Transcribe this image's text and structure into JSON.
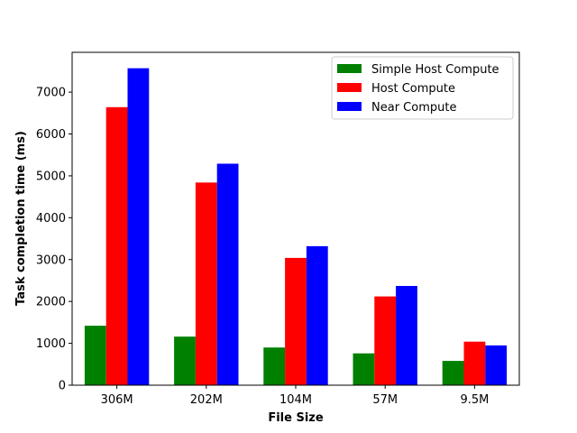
{
  "chart_data": {
    "type": "bar",
    "title": "",
    "xlabel": "File Size",
    "ylabel": "Task completion time (ms)",
    "categories": [
      "306M",
      "202M",
      "104M",
      "57M",
      "9.5M"
    ],
    "ylim": [
      0,
      7950
    ],
    "yticks": [
      0,
      1000,
      2000,
      3000,
      4000,
      5000,
      6000,
      7000
    ],
    "grid": false,
    "legend_position": "top-right",
    "series": [
      {
        "name": "Simple Host Compute",
        "color": "#008000",
        "values": [
          1420,
          1160,
          900,
          760,
          580
        ]
      },
      {
        "name": "Host Compute",
        "color": "#ff0000",
        "values": [
          6640,
          4840,
          3040,
          2120,
          1040
        ]
      },
      {
        "name": "Near Compute",
        "color": "#0000ff",
        "values": [
          7570,
          5290,
          3320,
          2370,
          950
        ]
      }
    ]
  }
}
